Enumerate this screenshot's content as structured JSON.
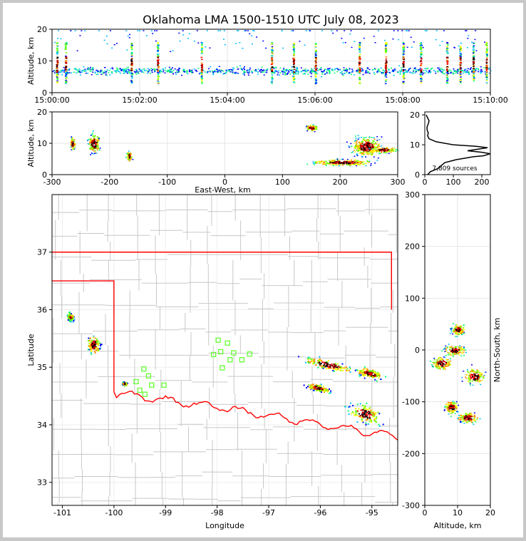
{
  "title": "Oklahoma LMA 1500-1510 UTC July 08, 2023",
  "colors": {
    "sources": [
      "#0000ff",
      "#00bbff",
      "#00ff66",
      "#66ff00",
      "#ffff00",
      "#ff8800",
      "#ff0000",
      "#880000",
      "#000000"
    ],
    "state_border": "#ff0000",
    "county_lines": "#c8c8c8",
    "stations": "#66ff33",
    "histogram": "#000000"
  },
  "chart_data": [
    {
      "id": "time-height",
      "type": "scatter",
      "xlabel": "",
      "ylabel": "Altitude, km",
      "x_range": [
        "15:00:00",
        "15:10:00"
      ],
      "xticks": [
        "15:00:00",
        "15:02:00",
        "15:04:00",
        "15:06:00",
        "15:08:00",
        "15:10:00"
      ],
      "ylim": [
        0,
        20
      ],
      "yticks": [
        "0",
        "10",
        "20"
      ],
      "grid": true,
      "bursts_minutes": [
        0.1,
        0.3,
        1.8,
        2.4,
        3.4,
        5.0,
        5.5,
        6.0,
        7.0,
        7.6,
        8.0,
        8.4,
        9.0,
        9.3,
        9.6,
        9.9
      ]
    },
    {
      "id": "ew-altitude",
      "type": "scatter",
      "xlabel": "East-West, km",
      "ylabel": "Altitude, km",
      "xlim": [
        -300,
        300
      ],
      "xticks": [
        "-300",
        "-200",
        "-100",
        "0",
        "100",
        "200",
        "300"
      ],
      "ylim": [
        0,
        20
      ],
      "yticks": [
        "0",
        "10",
        "20"
      ],
      "grid": true,
      "clusters": [
        {
          "x": -265,
          "z": 10,
          "sx": 4,
          "sz": 2
        },
        {
          "x": -228,
          "z": 10,
          "sx": 10,
          "sz": 3
        },
        {
          "x": -167,
          "z": 6,
          "sx": 4,
          "sz": 1.5
        },
        {
          "x": 150,
          "z": 15,
          "sx": 10,
          "sz": 1
        },
        {
          "x": 205,
          "z": 4,
          "sx": 50,
          "sz": 1
        },
        {
          "x": 245,
          "z": 9,
          "sx": 25,
          "sz": 3
        },
        {
          "x": 275,
          "z": 8,
          "sx": 20,
          "sz": 1
        }
      ]
    },
    {
      "id": "altitude-histogram",
      "type": "line",
      "xlabel": "",
      "ylabel": "",
      "xlim": [
        0,
        230
      ],
      "xticks": [
        "0",
        "100",
        "200"
      ],
      "ylim": [
        0,
        21
      ],
      "yticks": [
        "0",
        "10",
        "20"
      ],
      "annotation": "7,809 sources",
      "x": [
        10,
        20,
        45,
        70,
        110,
        140,
        170,
        205,
        230,
        200,
        150,
        185,
        220,
        180,
        100,
        40,
        15,
        10,
        12,
        8,
        8,
        12,
        15,
        10,
        5
      ],
      "y": [
        0,
        1,
        2,
        4,
        5,
        5.5,
        6,
        6.3,
        7,
        7.5,
        8,
        8.5,
        9,
        9.5,
        10,
        11,
        12,
        13,
        14,
        15,
        16,
        17,
        18,
        19,
        20
      ]
    },
    {
      "id": "plan-view",
      "type": "scatter",
      "xlabel": "Longitude",
      "ylabel": "Latitude",
      "xlim": [
        -101.2,
        -94.5
      ],
      "xticks": [
        "-101",
        "-100",
        "-99",
        "-98",
        "-97",
        "-96",
        "-95"
      ],
      "ylim": [
        32.6,
        38.0
      ],
      "yticks": [
        "33",
        "34",
        "35",
        "36",
        "37"
      ],
      "grid": true,
      "stations": [
        [
          -97.98,
          35.47
        ],
        [
          -97.8,
          35.42
        ],
        [
          -98.07,
          35.22
        ],
        [
          -97.93,
          35.27
        ],
        [
          -97.68,
          35.25
        ],
        [
          -97.37,
          35.23
        ],
        [
          -97.75,
          35.13
        ],
        [
          -97.52,
          35.13
        ],
        [
          -97.9,
          34.99
        ],
        [
          -99.42,
          34.97
        ],
        [
          -99.33,
          34.85
        ],
        [
          -99.57,
          34.75
        ],
        [
          -99.27,
          34.69
        ],
        [
          -99.03,
          34.69
        ],
        [
          -99.5,
          34.6
        ],
        [
          -99.4,
          34.53
        ]
      ],
      "clusters": [
        {
          "lon": -100.85,
          "lat": 35.88,
          "slon": 0.06,
          "slat": 0.06
        },
        {
          "lon": -100.4,
          "lat": 35.4,
          "slon": 0.12,
          "slat": 0.14
        },
        {
          "lon": -99.8,
          "lat": 34.72,
          "slon": 0.04,
          "slat": 0.03
        },
        {
          "lon": -95.85,
          "lat": 35.05,
          "slon": 0.45,
          "slat": 0.08
        },
        {
          "lon": -96.05,
          "lat": 34.65,
          "slon": 0.2,
          "slat": 0.06
        },
        {
          "lon": -95.15,
          "lat": 34.2,
          "slon": 0.3,
          "slat": 0.15
        },
        {
          "lon": -95.05,
          "lat": 34.9,
          "slon": 0.25,
          "slat": 0.08
        }
      ]
    },
    {
      "id": "ns-altitude",
      "type": "scatter",
      "xlabel": "Altitude, km",
      "ylabel": "North-South, km",
      "xlim": [
        0,
        20
      ],
      "xticks": [
        "0",
        "10",
        "20"
      ],
      "ylim": [
        -300,
        300
      ],
      "yticks": [
        "-300",
        "-200",
        "-100",
        "0",
        "100",
        "200",
        "300"
      ],
      "grid": true,
      "clusters": [
        {
          "z": 9,
          "y": 0,
          "sz": 3,
          "sy": 10
        },
        {
          "z": 10,
          "y": 40,
          "sz": 2,
          "sy": 10
        },
        {
          "z": 5,
          "y": -25,
          "sz": 3,
          "sy": 12
        },
        {
          "z": 15,
          "y": -50,
          "sz": 3,
          "sy": 15
        },
        {
          "z": 8,
          "y": -110,
          "sz": 2,
          "sy": 12
        },
        {
          "z": 13,
          "y": -130,
          "sz": 3,
          "sy": 10
        }
      ]
    }
  ]
}
